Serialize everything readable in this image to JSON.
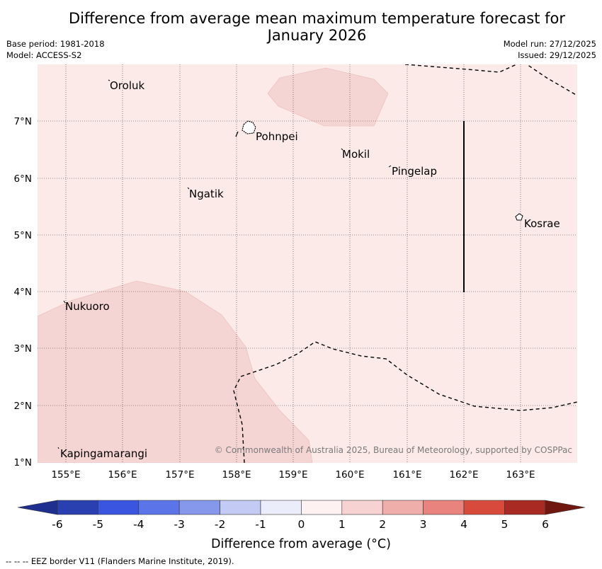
{
  "title": "Difference from average mean maximum temperature forecast for January 2026",
  "meta": {
    "base_period": "Base period: 1981-2018",
    "model": "Model: ACCESS-S2",
    "model_run": "Model run: 27/12/2025",
    "issued": "Issued: 29/12/2025"
  },
  "map": {
    "lon_labels": [
      "155°E",
      "156°E",
      "157°E",
      "158°E",
      "159°E",
      "160°E",
      "161°E",
      "162°E",
      "163°E"
    ],
    "lat_labels": [
      "1°N",
      "2°N",
      "3°N",
      "4°N",
      "5°N",
      "6°N",
      "7°N"
    ],
    "places": {
      "oroluk": "Oroluk",
      "pohnpei": "Pohnpei",
      "mokil": "Mokil",
      "pingelap": "Pingelap",
      "ngatik": "Ngatik",
      "kosrae": "Kosrae",
      "nukuoro": "Nukuoro",
      "kapingamarangi": "Kapingamarangi"
    },
    "copyright": "© Commonwealth of Australia 2025, Bureau of Meteorology, supported by COSPPac",
    "colors": {
      "background_band": "#fbeae8",
      "warm_band": "#f5d5d3",
      "land": "#ffffff"
    }
  },
  "colorbar": {
    "ticks": [
      "-6",
      "-5",
      "-4",
      "-3",
      "-2",
      "-1",
      "0",
      "1",
      "2",
      "3",
      "4",
      "5",
      "6"
    ],
    "colors": [
      "#1f2f8f",
      "#2a40b0",
      "#3a55e0",
      "#5b75e8",
      "#8598ec",
      "#c3cbf4",
      "#ecedfb",
      "#fdf2f1",
      "#f6d3d2",
      "#efaeaa",
      "#e8847d",
      "#d84a3c",
      "#a82a22",
      "#701810"
    ],
    "title": "Difference from average (°C)"
  },
  "footer": "--  --  -- EEZ border V11 (Flanders Marine Institute, 2019)."
}
